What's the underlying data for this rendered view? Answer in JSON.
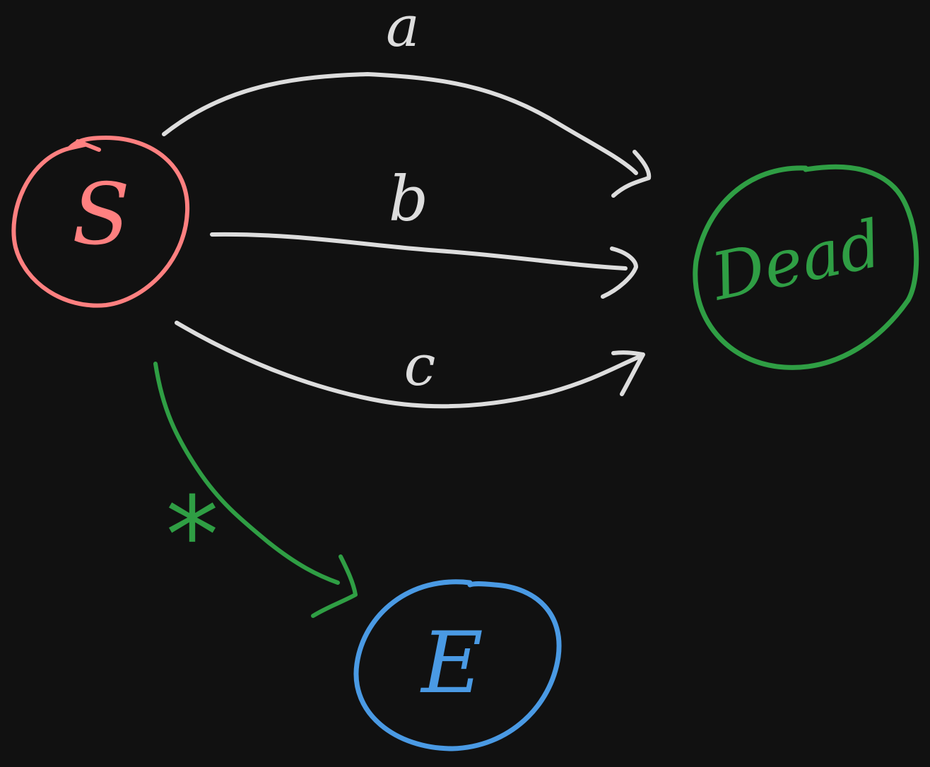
{
  "diagram": {
    "background": "#111111",
    "colors": {
      "start": "#ff8080",
      "dead": "#2f9e44",
      "end": "#4a9ae4",
      "edge": "#dddddd",
      "star_edge": "#2f9e44"
    },
    "nodes": {
      "start": {
        "label": "S"
      },
      "dead": {
        "label": "Dead"
      },
      "end": {
        "label": "E"
      }
    },
    "edges": {
      "a": {
        "label": "a",
        "from": "S",
        "to": "Dead"
      },
      "b": {
        "label": "b",
        "from": "S",
        "to": "Dead"
      },
      "c": {
        "label": "c",
        "from": "S",
        "to": "Dead"
      },
      "star": {
        "label": "*",
        "from": "S",
        "to": "E"
      }
    }
  }
}
